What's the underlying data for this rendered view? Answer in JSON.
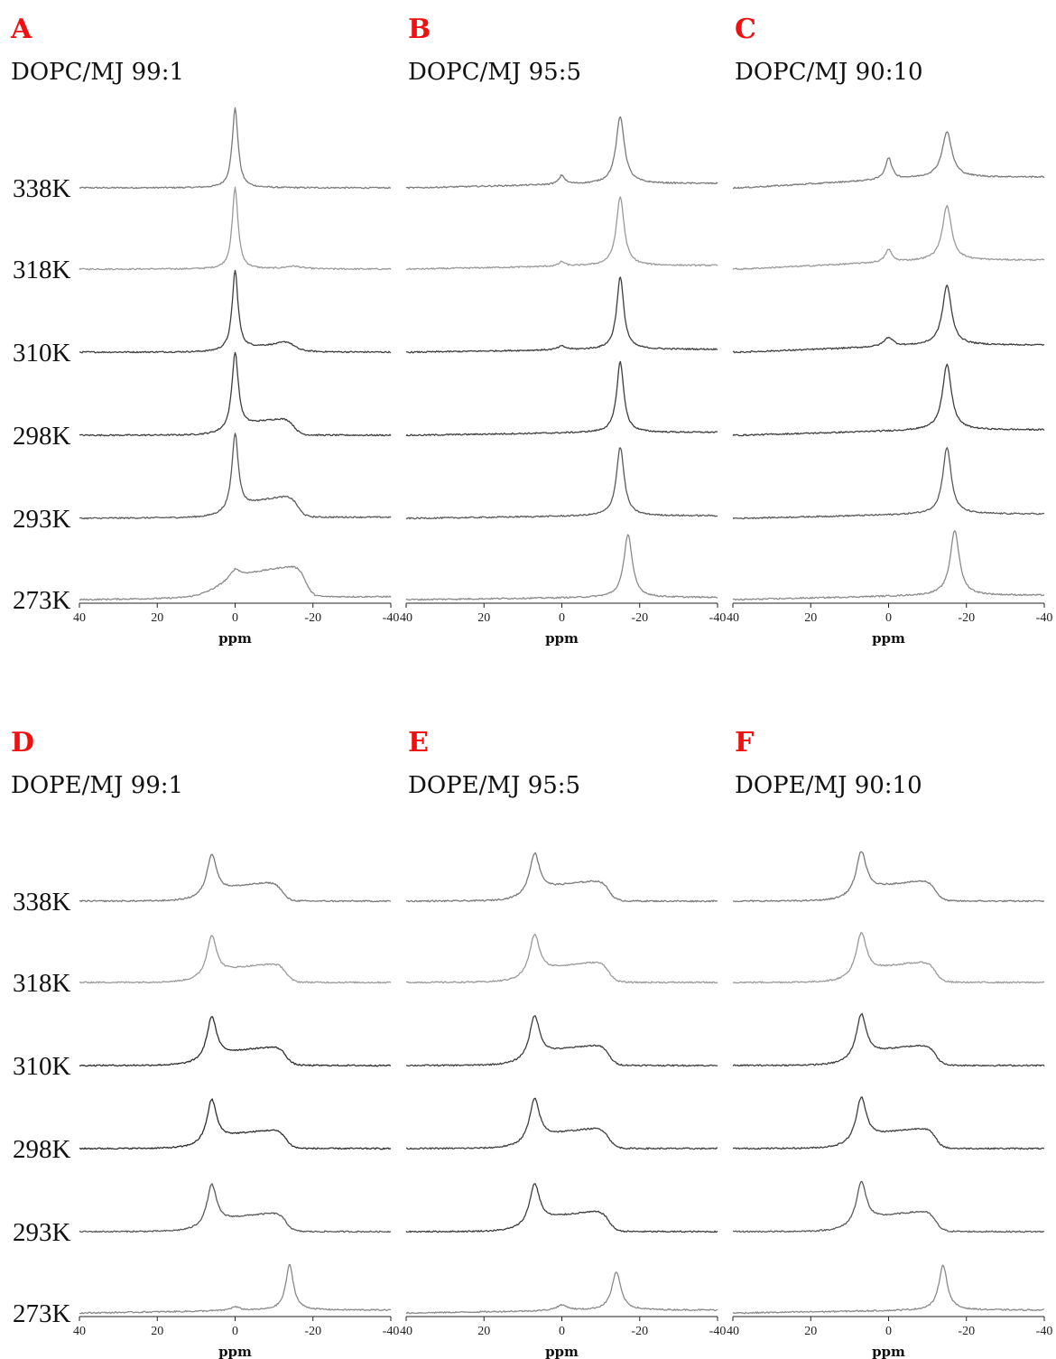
{
  "chart_data": [
    {
      "type": "line",
      "panel": "A",
      "title": "DOPC/MJ 99:1",
      "xlabel": "ppm",
      "xlim": [
        40,
        -40
      ],
      "xticks": [
        40,
        20,
        0,
        -20,
        -40
      ],
      "tick_labels": [
        "40",
        "20",
        "0",
        "-20",
        "-40"
      ],
      "series": [
        {
          "name": "338K",
          "color": "#7a7a7a",
          "peaks": [
            {
              "x": 0,
              "h": 88,
              "w": 0.9
            }
          ],
          "slope": 0
        },
        {
          "name": "318K",
          "color": "#9a9a9a",
          "peaks": [
            {
              "x": 0,
              "h": 90,
              "w": 0.9
            },
            {
              "x": -15,
              "h": 3,
              "w": 2.5
            }
          ],
          "slope": 0
        },
        {
          "name": "310K",
          "color": "#3e3e3e",
          "peaks": [
            {
              "x": 0,
              "h": 88,
              "w": 0.9
            },
            {
              "x": -14,
              "h": 6,
              "w": 2.5
            }
          ],
          "slope": 0,
          "shoulder": [
            {
              "from": 0,
              "to": -14,
              "h": 8
            }
          ]
        },
        {
          "name": "298K",
          "color": "#3e3e3e",
          "peaks": [
            {
              "x": 0,
              "h": 86,
              "w": 1.0
            }
          ],
          "slope": 0,
          "shoulder": [
            {
              "from": 0,
              "to": -15,
              "h": 20
            }
          ]
        },
        {
          "name": "293K",
          "color": "#5a5a5a",
          "peaks": [
            {
              "x": 0,
              "h": 86,
              "w": 1.0
            }
          ],
          "slope": 0.03,
          "shoulder": [
            {
              "from": 0,
              "to": -16,
              "h": 25
            }
          ]
        },
        {
          "name": "273K",
          "color": "#8a8a8a",
          "peaks": [
            {
              "x": 0,
              "h": 10,
              "w": 1.5
            }
          ],
          "slope": 0.08,
          "shoulder": [
            {
              "from": 5,
              "to": -18,
              "h": 36
            }
          ]
        }
      ]
    },
    {
      "type": "line",
      "panel": "B",
      "title": "DOPC/MJ 95:5",
      "xlabel": "ppm",
      "xlim": [
        40,
        -40
      ],
      "xticks": [
        40,
        20,
        0,
        -20,
        -40
      ],
      "tick_labels": [
        "40",
        "20",
        "0",
        "-20",
        "-40"
      ],
      "series": [
        {
          "name": "338K",
          "color": "#7a7a7a",
          "peaks": [
            {
              "x": 0,
              "h": 10,
              "w": 0.9
            },
            {
              "x": -15,
              "h": 74,
              "w": 1.3
            }
          ],
          "slope": 0.12
        },
        {
          "name": "318K",
          "color": "#9a9a9a",
          "peaks": [
            {
              "x": 0,
              "h": 5,
              "w": 0.9
            },
            {
              "x": -15,
              "h": 76,
              "w": 1.2
            }
          ],
          "slope": 0.1
        },
        {
          "name": "310K",
          "color": "#3e3e3e",
          "peaks": [
            {
              "x": 0,
              "h": 4,
              "w": 1.2
            },
            {
              "x": -15,
              "h": 80,
              "w": 1.1
            }
          ],
          "slope": 0.08
        },
        {
          "name": "298K",
          "color": "#3e3e3e",
          "peaks": [
            {
              "x": -15,
              "h": 78,
              "w": 1.1
            }
          ],
          "slope": 0.08
        },
        {
          "name": "293K",
          "color": "#5a5a5a",
          "peaks": [
            {
              "x": -15,
              "h": 76,
              "w": 1.2
            }
          ],
          "slope": 0.07
        },
        {
          "name": "273K",
          "color": "#8a8a8a",
          "peaks": [
            {
              "x": -17,
              "h": 70,
              "w": 1.3
            }
          ],
          "slope": 0.06
        }
      ]
    },
    {
      "type": "line",
      "panel": "C",
      "title": "DOPC/MJ 90:10",
      "xlabel": "ppm",
      "xlim": [
        40,
        -40
      ],
      "xticks": [
        40,
        20,
        0,
        -20,
        -40
      ],
      "tick_labels": [
        "40",
        "20",
        "0",
        "-20",
        "-40"
      ],
      "series": [
        {
          "name": "338K",
          "color": "#7a7a7a",
          "peaks": [
            {
              "x": 0,
              "h": 24,
              "w": 1.0
            },
            {
              "x": -15,
              "h": 50,
              "w": 1.5
            }
          ],
          "slope": 0.3
        },
        {
          "name": "318K",
          "color": "#9a9a9a",
          "peaks": [
            {
              "x": 0,
              "h": 14,
              "w": 1.0
            },
            {
              "x": -15,
              "h": 60,
              "w": 1.4
            }
          ],
          "slope": 0.25
        },
        {
          "name": "310K",
          "color": "#3e3e3e",
          "peaks": [
            {
              "x": 0,
              "h": 10,
              "w": 1.4
            },
            {
              "x": -15,
              "h": 66,
              "w": 1.4
            }
          ],
          "slope": 0.2
        },
        {
          "name": "298K",
          "color": "#3e3e3e",
          "peaks": [
            {
              "x": -15,
              "h": 72,
              "w": 1.4
            }
          ],
          "slope": 0.15
        },
        {
          "name": "293K",
          "color": "#5a5a5a",
          "peaks": [
            {
              "x": -15,
              "h": 74,
              "w": 1.3
            }
          ],
          "slope": 0.12
        },
        {
          "name": "273K",
          "color": "#8a8a8a",
          "peaks": [
            {
              "x": -17,
              "h": 72,
              "w": 1.4
            }
          ],
          "slope": 0.12
        }
      ]
    },
    {
      "type": "line",
      "panel": "D",
      "title": "DOPE/MJ 99:1",
      "xlabel": "ppm",
      "xlim": [
        40,
        -40
      ],
      "xticks": [
        40,
        20,
        0,
        -20,
        -40
      ],
      "tick_labels": [
        "40",
        "20",
        "0",
        "-20",
        "-40"
      ],
      "series": [
        {
          "name": "338K",
          "color": "#7a7a7a",
          "peaks": [
            {
              "x": 6,
              "h": 46,
              "w": 1.5
            }
          ],
          "slope": 0,
          "shoulder": [
            {
              "from": 6,
              "to": -12,
              "h": 22
            }
          ]
        },
        {
          "name": "318K",
          "color": "#9a9a9a",
          "peaks": [
            {
              "x": 6,
              "h": 46,
              "w": 1.5
            }
          ],
          "slope": 0,
          "shoulder": [
            {
              "from": 6,
              "to": -13,
              "h": 22
            }
          ]
        },
        {
          "name": "310K",
          "color": "#2e2e2e",
          "peaks": [
            {
              "x": 6,
              "h": 48,
              "w": 1.5
            }
          ],
          "slope": 0,
          "shoulder": [
            {
              "from": 6,
              "to": -13,
              "h": 22
            }
          ]
        },
        {
          "name": "298K",
          "color": "#2e2e2e",
          "peaks": [
            {
              "x": 6,
              "h": 48,
              "w": 1.5
            }
          ],
          "slope": 0,
          "shoulder": [
            {
              "from": 6,
              "to": -13,
              "h": 22
            }
          ]
        },
        {
          "name": "293K",
          "color": "#5a5a5a",
          "peaks": [
            {
              "x": 6,
              "h": 46,
              "w": 1.5
            }
          ],
          "slope": 0,
          "shoulder": [
            {
              "from": 6,
              "to": -13,
              "h": 22
            }
          ]
        },
        {
          "name": "273K",
          "color": "#8a8a8a",
          "peaks": [
            {
              "x": 0,
              "h": 4,
              "w": 1.5
            },
            {
              "x": -14,
              "h": 50,
              "w": 1.2
            }
          ],
          "slope": 0.08
        }
      ]
    },
    {
      "type": "line",
      "panel": "E",
      "title": "DOPE/MJ 95:5",
      "xlabel": "ppm",
      "xlim": [
        40,
        -40
      ],
      "xticks": [
        40,
        20,
        0,
        -20,
        -40
      ],
      "tick_labels": [
        "40",
        "20",
        "0",
        "-20",
        "-40"
      ],
      "series": [
        {
          "name": "338K",
          "color": "#7a7a7a",
          "peaks": [
            {
              "x": 7,
              "h": 46,
              "w": 1.6
            }
          ],
          "slope": 0,
          "shoulder": [
            {
              "from": 7,
              "to": -12,
              "h": 24
            }
          ]
        },
        {
          "name": "318K",
          "color": "#9a9a9a",
          "peaks": [
            {
              "x": 7,
              "h": 46,
              "w": 1.6
            }
          ],
          "slope": 0,
          "shoulder": [
            {
              "from": 7,
              "to": -12,
              "h": 24
            }
          ]
        },
        {
          "name": "310K",
          "color": "#3e3e3e",
          "peaks": [
            {
              "x": 7,
              "h": 48,
              "w": 1.6
            }
          ],
          "slope": 0,
          "shoulder": [
            {
              "from": 7,
              "to": -12,
              "h": 24
            }
          ]
        },
        {
          "name": "298K",
          "color": "#3e3e3e",
          "peaks": [
            {
              "x": 7,
              "h": 48,
              "w": 1.6
            }
          ],
          "slope": 0,
          "shoulder": [
            {
              "from": 7,
              "to": -12,
              "h": 24
            }
          ]
        },
        {
          "name": "293K",
          "color": "#3e3e3e",
          "peaks": [
            {
              "x": 7,
              "h": 46,
              "w": 1.6
            }
          ],
          "slope": 0,
          "shoulder": [
            {
              "from": 7,
              "to": -12,
              "h": 24
            }
          ]
        },
        {
          "name": "273K",
          "color": "#8a8a8a",
          "peaks": [
            {
              "x": 0,
              "h": 6,
              "w": 1.8
            },
            {
              "x": -14,
              "h": 42,
              "w": 1.4
            }
          ],
          "slope": 0.08
        }
      ]
    },
    {
      "type": "line",
      "panel": "F",
      "title": "DOPE/MJ 90:10",
      "xlabel": "ppm",
      "xlim": [
        40,
        -40
      ],
      "xticks": [
        40,
        20,
        0,
        -20,
        -40
      ],
      "tick_labels": [
        "40",
        "20",
        "0",
        "-20",
        "-40"
      ],
      "series": [
        {
          "name": "338K",
          "color": "#7a7a7a",
          "peaks": [
            {
              "x": 7,
              "h": 48,
              "w": 1.6
            }
          ],
          "slope": 0,
          "shoulder": [
            {
              "from": 7,
              "to": -12,
              "h": 24
            }
          ]
        },
        {
          "name": "318K",
          "color": "#9a9a9a",
          "peaks": [
            {
              "x": 7,
              "h": 48,
              "w": 1.6
            }
          ],
          "slope": 0,
          "shoulder": [
            {
              "from": 7,
              "to": -12,
              "h": 24
            }
          ]
        },
        {
          "name": "310K",
          "color": "#3e3e3e",
          "peaks": [
            {
              "x": 7,
              "h": 50,
              "w": 1.6
            }
          ],
          "slope": 0,
          "shoulder": [
            {
              "from": 7,
              "to": -12,
              "h": 24
            }
          ]
        },
        {
          "name": "298K",
          "color": "#3e3e3e",
          "peaks": [
            {
              "x": 7,
              "h": 50,
              "w": 1.6
            }
          ],
          "slope": 0,
          "shoulder": [
            {
              "from": 7,
              "to": -12,
              "h": 24
            }
          ]
        },
        {
          "name": "293K",
          "color": "#5a5a5a",
          "peaks": [
            {
              "x": 7,
              "h": 48,
              "w": 1.6
            }
          ],
          "slope": 0,
          "shoulder": [
            {
              "from": 7,
              "to": -12,
              "h": 24
            }
          ]
        },
        {
          "name": "273K",
          "color": "#8a8a8a",
          "peaks": [
            {
              "x": -14,
              "h": 50,
              "w": 1.3
            }
          ],
          "slope": 0.08
        }
      ]
    }
  ],
  "panel_letter_color": "#ee1111"
}
